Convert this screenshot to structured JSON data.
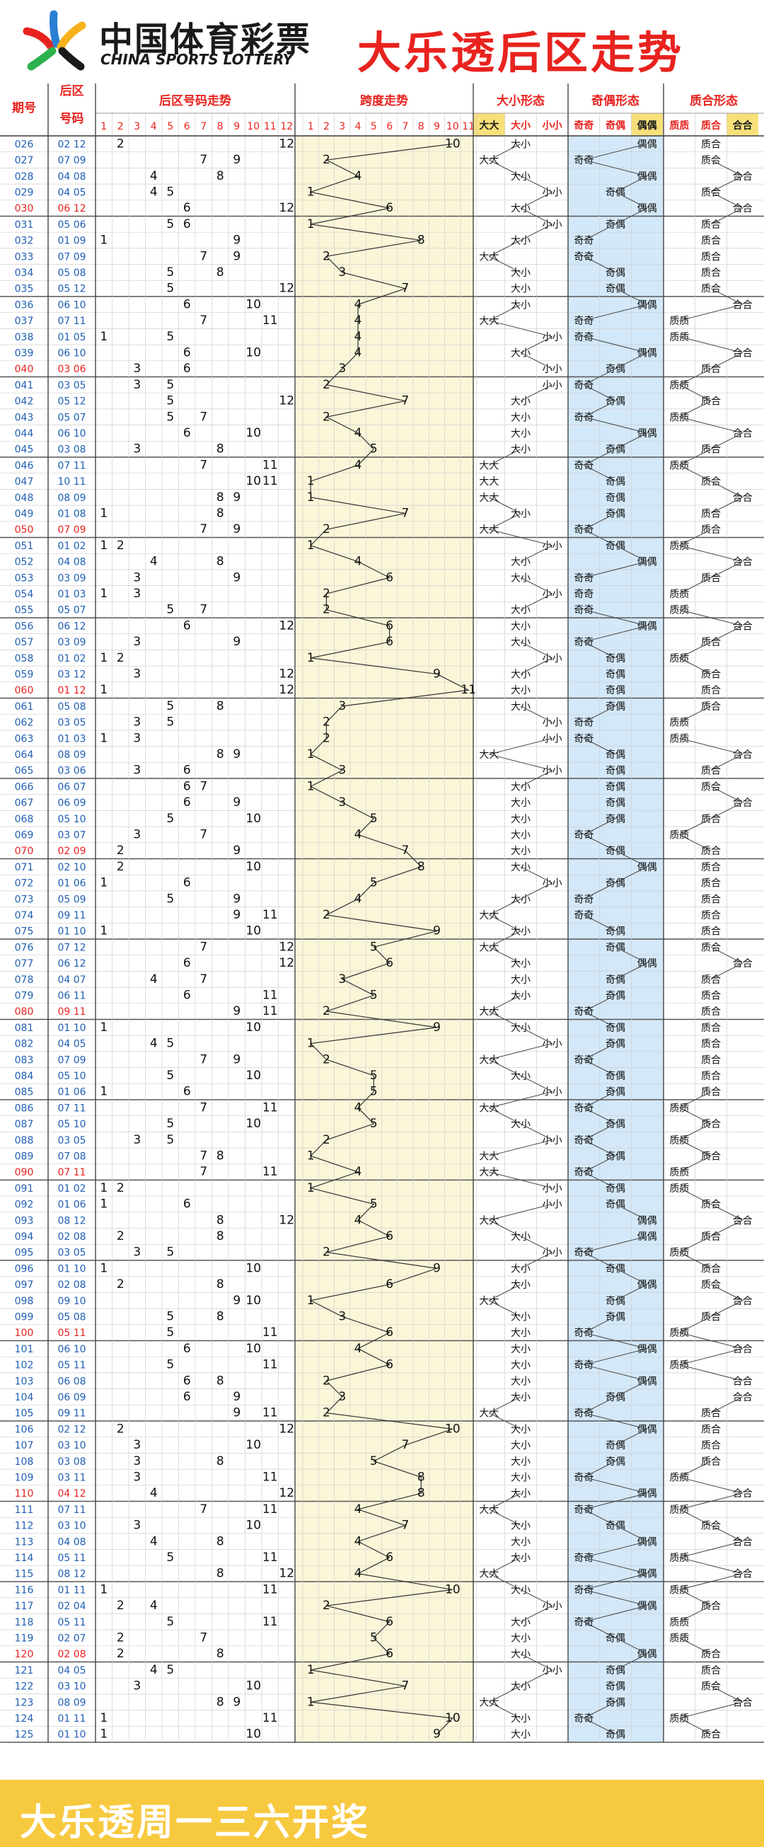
{
  "header": {
    "logo_cn": "中国体育彩票",
    "logo_en": "CHINA SPORTS LOTTERY",
    "title": "大乐透后区走势"
  },
  "footer": {
    "text": "大乐透周一三六开奖"
  },
  "table": {
    "col_issue": "期号",
    "col_back_line1": "后区",
    "col_back_line2": "号码",
    "group_trend": "后区号码走势",
    "group_span": "跨度走势",
    "group_size": "大小形态",
    "group_parity": "奇偶形态",
    "group_prime": "质合形态",
    "size_options": [
      "大大",
      "大小",
      "小小"
    ],
    "parity_options": [
      "奇奇",
      "奇偶",
      "偶偶"
    ],
    "prime_options": [
      "质质",
      "质合",
      "合合"
    ]
  },
  "colors": {
    "accent": "#e8231f",
    "issue_blue": "#1f5fb3",
    "highlight_red": "#e8231f",
    "span_bg": "#fbf6d8",
    "parity_bg": "#d3e8f8",
    "brand_yellow": "#f7c93f"
  },
  "chart_data": {
    "type": "table",
    "title": "大乐透后区走势",
    "issues": [
      "026",
      "027",
      "028",
      "029",
      "030",
      "031",
      "032",
      "033",
      "034",
      "035",
      "036",
      "037",
      "038",
      "039",
      "040",
      "041",
      "042",
      "043",
      "044",
      "045",
      "046",
      "047",
      "048",
      "049",
      "050",
      "051",
      "052",
      "053",
      "054",
      "055",
      "056",
      "057",
      "058",
      "059",
      "060",
      "061",
      "062",
      "063",
      "064",
      "065",
      "066",
      "067",
      "068",
      "069",
      "070",
      "071",
      "072",
      "073",
      "074",
      "075",
      "076",
      "077",
      "078",
      "079",
      "080",
      "081",
      "082",
      "083",
      "084",
      "085",
      "086",
      "087",
      "088",
      "089",
      "090",
      "091",
      "092",
      "093",
      "094",
      "095",
      "096",
      "097",
      "098",
      "099",
      "100",
      "101",
      "102",
      "103",
      "104",
      "105",
      "106",
      "107",
      "108",
      "109",
      "110",
      "111",
      "112",
      "113",
      "114",
      "115",
      "116",
      "117",
      "118",
      "119",
      "120",
      "121",
      "122",
      "123",
      "124",
      "125"
    ],
    "back_numbers": [
      [
        2,
        12
      ],
      [
        7,
        9
      ],
      [
        4,
        8
      ],
      [
        4,
        5
      ],
      [
        6,
        12
      ],
      [
        5,
        6
      ],
      [
        1,
        9
      ],
      [
        7,
        9
      ],
      [
        5,
        8
      ],
      [
        5,
        12
      ],
      [
        6,
        10
      ],
      [
        7,
        11
      ],
      [
        1,
        5
      ],
      [
        6,
        10
      ],
      [
        3,
        6
      ],
      [
        3,
        5
      ],
      [
        5,
        12
      ],
      [
        5,
        7
      ],
      [
        6,
        10
      ],
      [
        3,
        8
      ],
      [
        7,
        11
      ],
      [
        10,
        11
      ],
      [
        8,
        9
      ],
      [
        1,
        8
      ],
      [
        7,
        9
      ],
      [
        1,
        2
      ],
      [
        4,
        8
      ],
      [
        3,
        9
      ],
      [
        1,
        3
      ],
      [
        5,
        7
      ],
      [
        6,
        12
      ],
      [
        3,
        9
      ],
      [
        1,
        2
      ],
      [
        3,
        12
      ],
      [
        1,
        12
      ],
      [
        5,
        8
      ],
      [
        3,
        5
      ],
      [
        1,
        3
      ],
      [
        8,
        9
      ],
      [
        3,
        6
      ],
      [
        6,
        7
      ],
      [
        6,
        9
      ],
      [
        5,
        10
      ],
      [
        3,
        7
      ],
      [
        2,
        9
      ],
      [
        2,
        10
      ],
      [
        1,
        6
      ],
      [
        5,
        9
      ],
      [
        9,
        11
      ],
      [
        1,
        10
      ],
      [
        7,
        12
      ],
      [
        6,
        12
      ],
      [
        4,
        7
      ],
      [
        6,
        11
      ],
      [
        9,
        11
      ],
      [
        1,
        10
      ],
      [
        4,
        5
      ],
      [
        7,
        9
      ],
      [
        5,
        10
      ],
      [
        1,
        6
      ],
      [
        7,
        11
      ],
      [
        5,
        10
      ],
      [
        3,
        5
      ],
      [
        7,
        8
      ],
      [
        7,
        11
      ],
      [
        1,
        2
      ],
      [
        1,
        6
      ],
      [
        8,
        12
      ],
      [
        2,
        8
      ],
      [
        3,
        5
      ],
      [
        1,
        10
      ],
      [
        2,
        8
      ],
      [
        9,
        10
      ],
      [
        5,
        8
      ],
      [
        5,
        11
      ],
      [
        6,
        10
      ],
      [
        5,
        11
      ],
      [
        6,
        8
      ],
      [
        6,
        9
      ],
      [
        9,
        11
      ],
      [
        2,
        12
      ],
      [
        3,
        10
      ],
      [
        3,
        8
      ],
      [
        3,
        11
      ],
      [
        4,
        12
      ],
      [
        7,
        11
      ],
      [
        3,
        10
      ],
      [
        4,
        8
      ],
      [
        5,
        11
      ],
      [
        8,
        12
      ],
      [
        1,
        11
      ],
      [
        2,
        4
      ],
      [
        5,
        11
      ],
      [
        2,
        7
      ],
      [
        2,
        8
      ],
      [
        4,
        5
      ],
      [
        3,
        10
      ],
      [
        8,
        9
      ],
      [
        1,
        11
      ],
      [
        1,
        10
      ]
    ],
    "span": [
      10,
      2,
      4,
      1,
      6,
      1,
      8,
      2,
      3,
      7,
      4,
      4,
      4,
      4,
      3,
      2,
      7,
      2,
      4,
      5,
      4,
      1,
      1,
      7,
      2,
      1,
      4,
      6,
      2,
      2,
      6,
      6,
      1,
      9,
      11,
      3,
      2,
      2,
      1,
      3,
      1,
      3,
      5,
      4,
      7,
      8,
      5,
      4,
      2,
      9,
      5,
      6,
      3,
      5,
      2,
      9,
      1,
      2,
      5,
      5,
      4,
      5,
      2,
      1,
      4,
      1,
      5,
      4,
      6,
      2,
      9,
      6,
      1,
      3,
      6,
      4,
      6,
      2,
      3,
      2,
      10,
      7,
      5,
      8,
      8,
      4,
      7,
      4,
      6,
      4,
      10,
      2,
      6,
      5,
      6,
      1,
      7,
      1,
      10,
      9
    ],
    "span_range": [
      1,
      11
    ],
    "number_range": [
      1,
      12
    ]
  }
}
